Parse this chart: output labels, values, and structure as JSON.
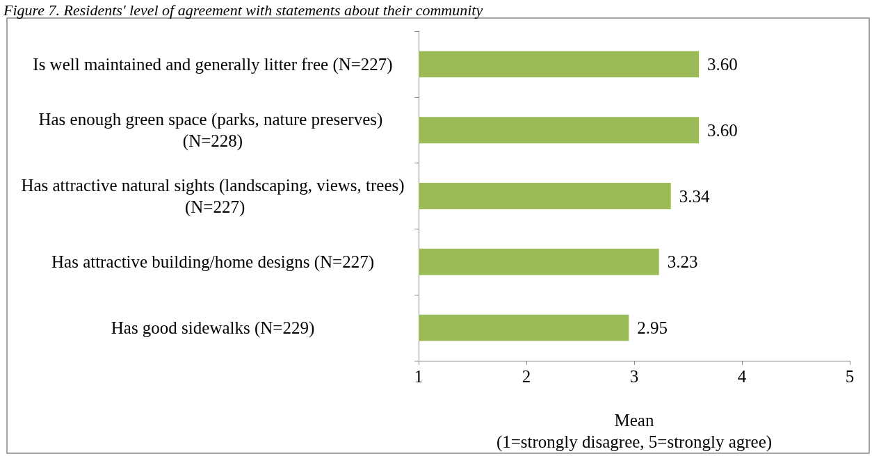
{
  "chart_data": {
    "type": "bar",
    "orientation": "horizontal",
    "title": "Figure 7. Residents' level of agreement with statements about their community",
    "categories": [
      "Is well maintained and generally litter free (N=227)",
      "Has enough green space (parks, nature preserves) (N=228)",
      "Has attractive natural sights (landscaping, views, trees) (N=227)",
      "Has attractive building/home designs (N=227)",
      "Has good sidewalks (N=229)"
    ],
    "values": [
      3.6,
      3.6,
      3.34,
      3.23,
      2.95
    ],
    "value_labels": [
      "3.60",
      "3.60",
      "3.34",
      "3.23",
      "2.95"
    ],
    "color": "#9bbb59",
    "xlabel": "Mean\n(1=strongly disagree, 5=strongly agree)",
    "xlim": [
      1,
      5
    ],
    "xticks": [
      1,
      2,
      3,
      4,
      5
    ],
    "grid": false
  }
}
